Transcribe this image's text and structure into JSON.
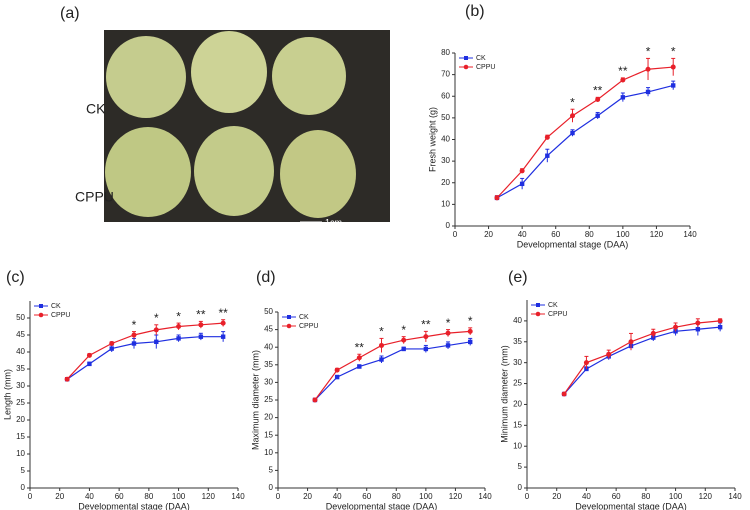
{
  "photo_panel": {
    "label": "(a)",
    "rows": [
      "CK",
      "CPPU"
    ],
    "scale_bar": "1cm"
  },
  "chart_data": [
    {
      "type": "line",
      "panel_label": "(b)",
      "x_label": "Developmental stage (DAA)",
      "y_label": "Fresh weight (g)",
      "x": [
        25,
        40,
        55,
        70,
        85,
        100,
        115,
        130
      ],
      "series": [
        {
          "name": "CK",
          "color": "#1f2fe0",
          "marker": "square",
          "values": [
            13,
            19.5,
            32.5,
            43,
            51,
            59.5,
            62,
            65
          ],
          "errors": [
            1,
            2.5,
            3,
            1.5,
            1.5,
            2,
            2,
            2
          ]
        },
        {
          "name": "CPPU",
          "color": "#e8202a",
          "marker": "circle",
          "values": [
            13,
            25.5,
            41,
            51,
            58.5,
            67.5,
            72.5,
            73.5
          ],
          "errors": [
            1,
            1,
            1,
            3,
            1,
            1,
            5,
            4
          ]
        }
      ],
      "annotations": [
        {
          "x": 70,
          "text": "*"
        },
        {
          "x": 85,
          "text": "**"
        },
        {
          "x": 100,
          "text": "**"
        },
        {
          "x": 115,
          "text": "*"
        },
        {
          "x": 130,
          "text": "*"
        }
      ],
      "xlim": [
        0,
        140
      ],
      "xticks": [
        0,
        20,
        40,
        60,
        80,
        100,
        120,
        140
      ],
      "ylim": [
        0,
        80
      ],
      "yticks": [
        0,
        10,
        20,
        30,
        40,
        50,
        60,
        70,
        80
      ]
    },
    {
      "type": "line",
      "panel_label": "(c)",
      "x_label": "Developmental stage (DAA)",
      "y_label": "Length (mm)",
      "x": [
        25,
        40,
        55,
        70,
        85,
        100,
        115,
        130
      ],
      "series": [
        {
          "name": "CK",
          "color": "#1f2fe0",
          "marker": "square",
          "values": [
            32,
            36.5,
            41,
            42.5,
            43,
            44,
            44.5,
            44.5
          ],
          "errors": [
            0.5,
            0.5,
            1,
            1.5,
            2,
            1,
            1,
            1.5
          ]
        },
        {
          "name": "CPPU",
          "color": "#e8202a",
          "marker": "circle",
          "values": [
            32,
            39,
            42.5,
            45,
            46.5,
            47.5,
            48,
            48.5
          ],
          "errors": [
            0.5,
            0.5,
            0.5,
            1,
            1.5,
            1,
            1,
            1
          ]
        }
      ],
      "annotations": [
        {
          "x": 70,
          "text": "*"
        },
        {
          "x": 85,
          "text": "*"
        },
        {
          "x": 100,
          "text": "*"
        },
        {
          "x": 115,
          "text": "**"
        },
        {
          "x": 130,
          "text": "**"
        }
      ],
      "xlim": [
        0,
        140
      ],
      "xticks": [
        0,
        20,
        40,
        60,
        80,
        100,
        120,
        140
      ],
      "ylim": [
        0,
        55
      ],
      "yticks": [
        0,
        5,
        10,
        15,
        20,
        25,
        30,
        35,
        40,
        45,
        50
      ]
    },
    {
      "type": "line",
      "panel_label": "(d)",
      "x_label": "Developmental stage (DAA)",
      "y_label": "Maximum diameter (mm)",
      "x": [
        25,
        40,
        55,
        70,
        85,
        100,
        115,
        130
      ],
      "series": [
        {
          "name": "CK",
          "color": "#1f2fe0",
          "marker": "square",
          "values": [
            25,
            31.5,
            34.5,
            36.5,
            39.5,
            39.5,
            40.5,
            41.5
          ],
          "errors": [
            0.5,
            0.5,
            0.5,
            1,
            0.5,
            1,
            1,
            1
          ]
        },
        {
          "name": "CPPU",
          "color": "#e8202a",
          "marker": "circle",
          "values": [
            25,
            33.5,
            37,
            40.5,
            42,
            43,
            44,
            44.5
          ],
          "errors": [
            0.5,
            0.5,
            1,
            2,
            1,
            1.5,
            1,
            1
          ]
        }
      ],
      "annotations": [
        {
          "x": 55,
          "text": "**"
        },
        {
          "x": 70,
          "text": "*"
        },
        {
          "x": 85,
          "text": "*"
        },
        {
          "x": 100,
          "text": "**"
        },
        {
          "x": 115,
          "text": "*"
        },
        {
          "x": 130,
          "text": "*"
        }
      ],
      "xlim": [
        0,
        140
      ],
      "xticks": [
        0,
        20,
        40,
        60,
        80,
        100,
        120,
        140
      ],
      "ylim": [
        0,
        50
      ],
      "yticks": [
        0,
        5,
        10,
        15,
        20,
        25,
        30,
        35,
        40,
        45,
        50
      ]
    },
    {
      "type": "line",
      "panel_label": "(e)",
      "x_label": "Developmental stage (DAA)",
      "y_label": "Minimum diameter (mm)",
      "x": [
        25,
        40,
        55,
        70,
        85,
        100,
        115,
        130
      ],
      "series": [
        {
          "name": "CK",
          "color": "#1f2fe0",
          "marker": "square",
          "values": [
            22.5,
            28.5,
            31.5,
            34,
            36,
            37.5,
            38,
            38.5
          ],
          "errors": [
            0.3,
            0.5,
            0.8,
            1,
            0.8,
            1,
            1.5,
            1
          ]
        },
        {
          "name": "CPPU",
          "color": "#e8202a",
          "marker": "circle",
          "values": [
            22.5,
            30,
            32,
            35,
            37,
            38.5,
            39.5,
            40
          ],
          "errors": [
            0.3,
            1.5,
            1,
            2,
            1,
            1,
            1,
            0.5
          ]
        }
      ],
      "annotations": [],
      "xlim": [
        0,
        140
      ],
      "xticks": [
        0,
        20,
        40,
        60,
        80,
        100,
        120,
        140
      ],
      "ylim": [
        0,
        45
      ],
      "yticks": [
        0,
        5,
        10,
        15,
        20,
        25,
        30,
        35,
        40
      ]
    }
  ]
}
